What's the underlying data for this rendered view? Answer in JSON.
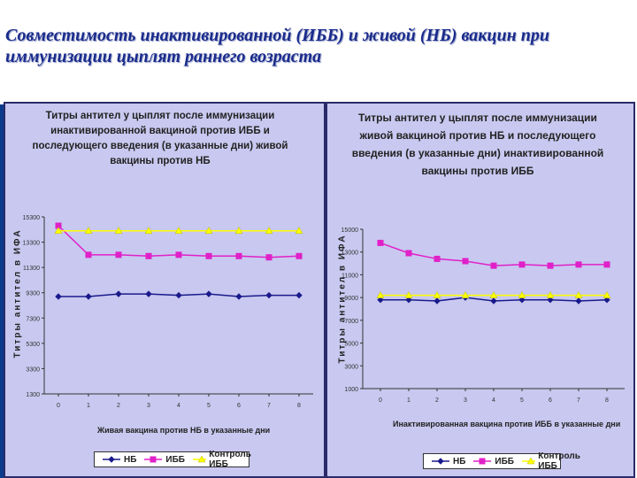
{
  "slide": {
    "title": "Совместимость инактивированной (ИББ) и живой (НБ) вакцин при иммунизации цыплят раннего возраста"
  },
  "chart_data": [
    {
      "type": "line",
      "title": "Титры антител у цыплят после иммунизации инактивированной вакциной против ИББ и последующего введения (в указанные дни) живой вакцины против НБ",
      "xlabel": "Живая вакцина против НБ в указанные дни",
      "ylabel": "Титры антител в ИФА",
      "x": [
        "0",
        "1",
        "2",
        "3",
        "4",
        "5",
        "6",
        "7",
        "8"
      ],
      "yticks": [
        "1300",
        "3300",
        "5300",
        "7300",
        "9300",
        "11300",
        "13300",
        "15300"
      ],
      "ylim": [
        1300,
        15300
      ],
      "grid": false,
      "legend": "bottom",
      "series": [
        {
          "name": "НБ",
          "color": "#1a1a8c",
          "marker": "diamond",
          "values": [
            9000,
            9000,
            9200,
            9200,
            9100,
            9200,
            9000,
            9100,
            9100
          ]
        },
        {
          "name": "ИББ",
          "color": "#e020c8",
          "marker": "square",
          "values": [
            14600,
            12300,
            12300,
            12200,
            12300,
            12200,
            12200,
            12100,
            12200
          ]
        },
        {
          "name": "Контроль ИББ",
          "color": "#ffff00",
          "marker": "triangle",
          "values": [
            14200,
            14200,
            14200,
            14200,
            14200,
            14200,
            14200,
            14200,
            14200
          ]
        }
      ]
    },
    {
      "type": "line",
      "title": "Титры антител у цыплят после иммунизации живой вакциной против НБ и последующего введения (в указанные дни) инактивированной вакцины против ИББ",
      "xlabel": "Инактивированная вакцина против ИББ в указанные дни",
      "ylabel": "Титры антител в ИФА",
      "x": [
        "0",
        "1",
        "2",
        "3",
        "4",
        "5",
        "6",
        "7",
        "8"
      ],
      "yticks": [
        "1000",
        "3000",
        "5000",
        "7000",
        "9000",
        "11000",
        "13000",
        "15000"
      ],
      "ylim": [
        1000,
        15000
      ],
      "grid": false,
      "legend": "bottom",
      "series": [
        {
          "name": "НБ",
          "color": "#1a1a8c",
          "marker": "diamond",
          "values": [
            8800,
            8800,
            8700,
            9000,
            8700,
            8800,
            8800,
            8700,
            8800
          ]
        },
        {
          "name": "ИББ",
          "color": "#e020c8",
          "marker": "square",
          "values": [
            13800,
            12900,
            12400,
            12200,
            11800,
            11900,
            11800,
            11900,
            11900
          ]
        },
        {
          "name": "Контроль ИББ",
          "color": "#ffff00",
          "marker": "triangle",
          "values": [
            9200,
            9200,
            9200,
            9200,
            9200,
            9200,
            9200,
            9200,
            9200
          ]
        }
      ]
    }
  ]
}
